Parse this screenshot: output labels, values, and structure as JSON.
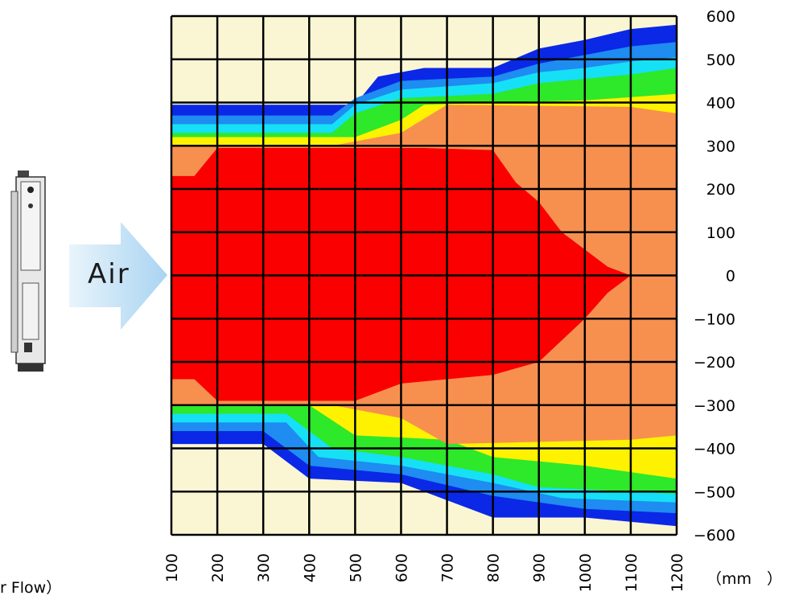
{
  "arrow_label": "Air",
  "caption_fragment": "r Flow）",
  "chart_data": {
    "type": "heatmap",
    "title": "",
    "xlabel": "",
    "ylabel": "",
    "unit_label": "（mm　）",
    "x_ticks": [
      100,
      200,
      300,
      400,
      500,
      600,
      700,
      800,
      900,
      1000,
      1100,
      1200
    ],
    "y_ticks": [
      600,
      500,
      400,
      300,
      200,
      100,
      0,
      -100,
      -200,
      -300,
      -400,
      -500,
      -600
    ],
    "xlim": [
      100,
      1200
    ],
    "ylim": [
      -600,
      600
    ],
    "grid": true,
    "colors": {
      "background": "#faf6d4",
      "dark_blue": "#0a28e6",
      "blue": "#1e8cf0",
      "cyan": "#16e0f5",
      "green": "#2ee82a",
      "yellow": "#fff200",
      "orange": "#f7904f",
      "red": "#fa0000"
    },
    "regions": [
      {
        "color": "dark_blue",
        "upper": [
          [
            100,
            395
          ],
          [
            500,
            395
          ],
          [
            550,
            460
          ],
          [
            650,
            480
          ],
          [
            800,
            480
          ],
          [
            900,
            525
          ],
          [
            1000,
            545
          ],
          [
            1100,
            570
          ],
          [
            1200,
            580
          ]
        ],
        "lower": [
          [
            100,
            -390
          ],
          [
            300,
            -390
          ],
          [
            400,
            -470
          ],
          [
            600,
            -480
          ],
          [
            800,
            -560
          ],
          [
            1000,
            -560
          ],
          [
            1200,
            -580
          ]
        ]
      },
      {
        "color": "blue",
        "upper": [
          [
            100,
            370
          ],
          [
            450,
            370
          ],
          [
            500,
            410
          ],
          [
            600,
            450
          ],
          [
            800,
            460
          ],
          [
            900,
            490
          ],
          [
            1000,
            510
          ],
          [
            1100,
            530
          ],
          [
            1200,
            540
          ]
        ],
        "lower": [
          [
            100,
            -360
          ],
          [
            300,
            -360
          ],
          [
            400,
            -440
          ],
          [
            600,
            -460
          ],
          [
            800,
            -510
          ],
          [
            1000,
            -540
          ],
          [
            1200,
            -550
          ]
        ]
      },
      {
        "color": "cyan",
        "upper": [
          [
            100,
            350
          ],
          [
            450,
            350
          ],
          [
            500,
            395
          ],
          [
            600,
            430
          ],
          [
            800,
            445
          ],
          [
            900,
            470
          ],
          [
            1000,
            480
          ],
          [
            1100,
            495
          ],
          [
            1200,
            505
          ]
        ],
        "lower": [
          [
            100,
            -340
          ],
          [
            350,
            -340
          ],
          [
            420,
            -420
          ],
          [
            600,
            -440
          ],
          [
            800,
            -480
          ],
          [
            950,
            -515
          ],
          [
            1200,
            -525
          ]
        ]
      },
      {
        "color": "green",
        "upper": [
          [
            100,
            330
          ],
          [
            450,
            330
          ],
          [
            500,
            375
          ],
          [
            600,
            410
          ],
          [
            800,
            420
          ],
          [
            900,
            445
          ],
          [
            1000,
            455
          ],
          [
            1100,
            465
          ],
          [
            1200,
            480
          ]
        ],
        "lower": [
          [
            100,
            -320
          ],
          [
            350,
            -320
          ],
          [
            450,
            -400
          ],
          [
            600,
            -420
          ],
          [
            800,
            -460
          ],
          [
            900,
            -490
          ],
          [
            1200,
            -505
          ]
        ]
      },
      {
        "color": "yellow",
        "upper": [
          [
            100,
            320
          ],
          [
            500,
            320
          ],
          [
            600,
            360
          ],
          [
            650,
            395
          ],
          [
            800,
            400
          ],
          [
            1000,
            405
          ],
          [
            1200,
            420
          ]
        ],
        "lower": [
          [
            100,
            -300
          ],
          [
            400,
            -300
          ],
          [
            500,
            -370
          ],
          [
            700,
            -380
          ],
          [
            800,
            -420
          ],
          [
            1000,
            -440
          ],
          [
            1200,
            -470
          ]
        ]
      },
      {
        "color": "orange",
        "upper": [
          [
            100,
            300
          ],
          [
            450,
            300
          ],
          [
            600,
            330
          ],
          [
            700,
            395
          ],
          [
            1100,
            390
          ],
          [
            1200,
            375
          ]
        ],
        "lower": [
          [
            100,
            -300
          ],
          [
            450,
            -300
          ],
          [
            600,
            -330
          ],
          [
            700,
            -390
          ],
          [
            1100,
            -380
          ],
          [
            1200,
            -370
          ]
        ]
      },
      {
        "color": "red",
        "upper": [
          [
            100,
            230
          ],
          [
            150,
            230
          ],
          [
            200,
            295
          ],
          [
            650,
            295
          ],
          [
            800,
            290
          ],
          [
            850,
            215
          ],
          [
            900,
            170
          ],
          [
            950,
            100
          ],
          [
            1000,
            60
          ],
          [
            1050,
            20
          ],
          [
            1100,
            0
          ]
        ],
        "lower": [
          [
            100,
            -240
          ],
          [
            150,
            -240
          ],
          [
            200,
            -290
          ],
          [
            500,
            -290
          ],
          [
            600,
            -250
          ],
          [
            800,
            -230
          ],
          [
            900,
            -200
          ],
          [
            950,
            -150
          ],
          [
            1000,
            -100
          ],
          [
            1050,
            -40
          ],
          [
            1100,
            0
          ]
        ]
      }
    ]
  }
}
